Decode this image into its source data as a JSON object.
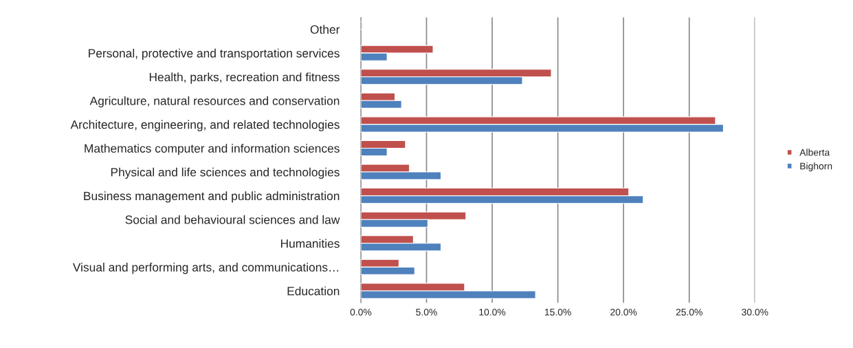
{
  "chart_data": {
    "type": "bar",
    "orientation": "horizontal",
    "categories": [
      "Other",
      "Personal, protective and transportation services",
      "Health, parks, recreation and fitness",
      "Agriculture, natural resources and conservation",
      "Architecture, engineering, and related technologies",
      "Mathematics computer and information sciences",
      "Physical and life sciences and technologies",
      "Business management and public administration",
      "Social and behavioural sciences and law",
      "Humanities",
      "Visual and performing arts, and communications…",
      "Education"
    ],
    "series": [
      {
        "name": "Alberta",
        "color": "#c0504d",
        "values": [
          0.1,
          5.5,
          14.5,
          2.6,
          27.0,
          3.4,
          3.7,
          20.4,
          8.0,
          4.0,
          2.9,
          7.9
        ]
      },
      {
        "name": "Bighorn",
        "color": "#4f81bd",
        "values": [
          null,
          2.0,
          12.3,
          3.1,
          27.6,
          2.0,
          6.1,
          21.5,
          5.1,
          6.1,
          4.1,
          13.3
        ]
      }
    ],
    "xlim": [
      0,
      30
    ],
    "xticks": [
      {
        "value": 0,
        "label": "0.0%"
      },
      {
        "value": 5,
        "label": "5.0%"
      },
      {
        "value": 10,
        "label": "10.0%"
      },
      {
        "value": 15,
        "label": "15.0%"
      },
      {
        "value": 20,
        "label": "20.0%"
      },
      {
        "value": 25,
        "label": "25.0%"
      },
      {
        "value": 30,
        "label": "30.0%"
      }
    ],
    "grid": "x",
    "legend": "right"
  }
}
